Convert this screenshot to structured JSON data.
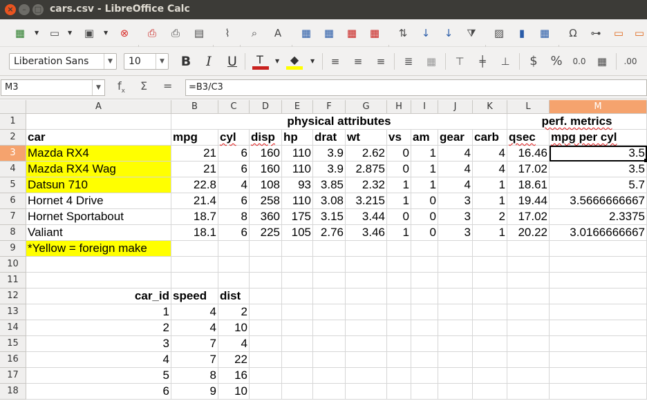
{
  "window": {
    "title": "cars.csv - LibreOffice Calc"
  },
  "toolbar": {
    "font_name": "Liberation Sans",
    "font_size": "10",
    "font_color": "#c9211e",
    "highlight_color": "#ffff00"
  },
  "formula_bar": {
    "name_box": "M3",
    "formula": "=B3/C3"
  },
  "columns": [
    "A",
    "B",
    "C",
    "D",
    "E",
    "F",
    "G",
    "H",
    "I",
    "J",
    "K",
    "L",
    "M"
  ],
  "rows": [
    "1",
    "2",
    "3",
    "4",
    "5",
    "6",
    "7",
    "8",
    "9",
    "10",
    "11",
    "12",
    "13",
    "14",
    "15",
    "16",
    "17",
    "18"
  ],
  "headers": {
    "physical": "physical attributes",
    "perf": "perf. metrics",
    "fields": [
      "car",
      "mpg",
      "cyl",
      "disp",
      "hp",
      "drat",
      "wt",
      "vs",
      "am",
      "gear",
      "carb",
      "qsec",
      "mpg per cyl"
    ]
  },
  "cars": [
    {
      "car": "Mazda RX4",
      "mpg": "21",
      "cyl": "6",
      "disp": "160",
      "hp": "110",
      "drat": "3.9",
      "wt": "2.62",
      "vs": "0",
      "am": "1",
      "gear": "4",
      "carb": "4",
      "qsec": "16.46",
      "mpc": "3.5",
      "foreign": true
    },
    {
      "car": "Mazda RX4 Wag",
      "mpg": "21",
      "cyl": "6",
      "disp": "160",
      "hp": "110",
      "drat": "3.9",
      "wt": "2.875",
      "vs": "0",
      "am": "1",
      "gear": "4",
      "carb": "4",
      "qsec": "17.02",
      "mpc": "3.5",
      "foreign": true
    },
    {
      "car": "Datsun 710",
      "mpg": "22.8",
      "cyl": "4",
      "disp": "108",
      "hp": "93",
      "drat": "3.85",
      "wt": "2.32",
      "vs": "1",
      "am": "1",
      "gear": "4",
      "carb": "1",
      "qsec": "18.61",
      "mpc": "5.7",
      "foreign": true
    },
    {
      "car": "Hornet 4 Drive",
      "mpg": "21.4",
      "cyl": "6",
      "disp": "258",
      "hp": "110",
      "drat": "3.08",
      "wt": "3.215",
      "vs": "1",
      "am": "0",
      "gear": "3",
      "carb": "1",
      "qsec": "19.44",
      "mpc": "3.5666666667",
      "foreign": false
    },
    {
      "car": "Hornet Sportabout",
      "mpg": "18.7",
      "cyl": "8",
      "disp": "360",
      "hp": "175",
      "drat": "3.15",
      "wt": "3.44",
      "vs": "0",
      "am": "0",
      "gear": "3",
      "carb": "2",
      "qsec": "17.02",
      "mpc": "2.3375",
      "foreign": false
    },
    {
      "car": "Valiant",
      "mpg": "18.1",
      "cyl": "6",
      "disp": "225",
      "hp": "105",
      "drat": "2.76",
      "wt": "3.46",
      "vs": "1",
      "am": "0",
      "gear": "3",
      "carb": "1",
      "qsec": "20.22",
      "mpc": "3.0166666667",
      "foreign": false
    }
  ],
  "note": "*Yellow = foreign make",
  "speed_table": {
    "headers": [
      "car_id",
      "speed",
      "dist"
    ],
    "rows": [
      [
        "1",
        "4",
        "2"
      ],
      [
        "2",
        "4",
        "10"
      ],
      [
        "3",
        "7",
        "4"
      ],
      [
        "4",
        "7",
        "22"
      ],
      [
        "5",
        "8",
        "16"
      ],
      [
        "6",
        "9",
        "10"
      ]
    ]
  }
}
